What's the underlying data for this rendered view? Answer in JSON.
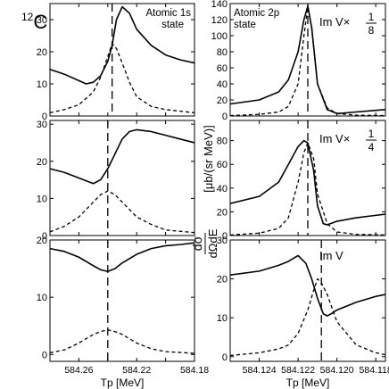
{
  "figure": {
    "y_label_numerator": "dσ",
    "y_label_denominator": "dΩdE",
    "y_label_unit": "[μb/(sr MeV)]",
    "nucleus_label_mass": "12",
    "nucleus_label_symbol": "C"
  },
  "chart_data": [
    {
      "type": "line",
      "panel": "left-top",
      "annotation": [
        "Atomic 1s",
        "state"
      ],
      "xlabel": "",
      "ylim": [
        0,
        35
      ],
      "yticks": [
        0,
        10,
        20,
        30
      ],
      "xlim": [
        584.28,
        584.18
      ],
      "x_tick_values": [
        584.26,
        584.24,
        584.22,
        584.2,
        584.18
      ],
      "x_tick_labels": [],
      "dashed_vline_x": 584.237,
      "series": [
        {
          "style": "solid",
          "x": [
            584.28,
            584.27,
            584.26,
            584.255,
            584.25,
            584.245,
            584.24,
            584.237,
            584.234,
            584.23,
            584.225,
            584.22,
            584.21,
            584.2,
            584.19,
            584.18
          ],
          "y": [
            14.5,
            13,
            11,
            10,
            10.5,
            12.5,
            17,
            22,
            30,
            34,
            32,
            27,
            22,
            19,
            17.5,
            16.5
          ]
        },
        {
          "style": "dashed",
          "x": [
            584.28,
            584.27,
            584.26,
            584.25,
            584.245,
            584.24,
            584.237,
            584.234,
            584.23,
            584.225,
            584.22,
            584.21,
            584.2,
            584.18
          ],
          "y": [
            1,
            2,
            3.5,
            7.5,
            12,
            18.5,
            22.5,
            21,
            16.5,
            10.5,
            6,
            3,
            2,
            1
          ]
        }
      ]
    },
    {
      "type": "line",
      "panel": "left-middle",
      "annotation": [],
      "xlabel": "",
      "ylim": [
        0,
        31
      ],
      "yticks": [
        0,
        10,
        20,
        30
      ],
      "xlim": [
        584.28,
        584.18
      ],
      "x_tick_values": [
        584.26,
        584.24,
        584.22,
        584.2,
        584.18
      ],
      "x_tick_labels": [],
      "dashed_vline_x": 584.24,
      "series": [
        {
          "style": "solid",
          "x": [
            584.28,
            584.27,
            584.26,
            584.25,
            584.245,
            584.24,
            584.235,
            584.23,
            584.225,
            584.22,
            584.21,
            584.2,
            584.19,
            584.18
          ],
          "y": [
            18,
            17,
            15.5,
            14,
            15,
            18,
            22,
            26,
            28,
            28.5,
            28,
            27,
            26,
            25
          ]
        },
        {
          "style": "dashed",
          "x": [
            584.28,
            584.27,
            584.26,
            584.25,
            584.245,
            584.24,
            584.235,
            584.23,
            584.22,
            584.21,
            584.2,
            584.18
          ],
          "y": [
            1,
            2.5,
            5,
            9,
            11,
            12,
            11,
            9,
            5,
            3,
            1.5,
            0.8
          ]
        }
      ]
    },
    {
      "type": "line",
      "panel": "left-bottom",
      "annotation": [],
      "xlabel": "Tp [MeV]",
      "ylim": [
        -1.2,
        20
      ],
      "yticks": [
        0,
        10,
        20
      ],
      "xlim": [
        584.28,
        584.18
      ],
      "x_tick_values": [
        584.26,
        584.24,
        584.22,
        584.2,
        584.18
      ],
      "x_tick_labels": [
        "584.26",
        "",
        "584.22",
        "",
        "584.18"
      ],
      "dashed_vline_x": 584.24,
      "series": [
        {
          "style": "solid",
          "x": [
            584.28,
            584.27,
            584.26,
            584.25,
            584.245,
            584.24,
            584.235,
            584.23,
            584.22,
            584.21,
            584.2,
            584.19,
            584.18
          ],
          "y": [
            18.5,
            18,
            17,
            15.5,
            14.8,
            14.5,
            15,
            16,
            17.5,
            18.5,
            19,
            19.2,
            19.5
          ]
        },
        {
          "style": "dashed",
          "x": [
            584.28,
            584.27,
            584.26,
            584.25,
            584.245,
            584.24,
            584.235,
            584.23,
            584.22,
            584.21,
            584.2,
            584.18
          ],
          "y": [
            0.3,
            0.8,
            2,
            3.5,
            4,
            4.3,
            4,
            3.5,
            2,
            1,
            0.5,
            0.2
          ]
        }
      ]
    },
    {
      "type": "line",
      "panel": "right-top",
      "annotation": [
        "Atomic 2p",
        "state"
      ],
      "scale_label": {
        "prefix": "Im V×",
        "num": "1",
        "den": "8"
      },
      "xlabel": "",
      "ylim": [
        0,
        140
      ],
      "yticks": [
        0,
        20,
        40,
        60,
        80,
        100,
        120,
        140
      ],
      "xlim": [
        584.1255,
        584.1175
      ],
      "x_tick_values": [
        584.124,
        584.122,
        584.12,
        584.118
      ],
      "x_tick_labels": [],
      "dashed_vline_x": 584.1215,
      "series": [
        {
          "style": "solid",
          "x": [
            584.1255,
            584.124,
            584.123,
            584.1225,
            584.122,
            584.1217,
            584.1215,
            584.1213,
            584.121,
            584.1205,
            584.12,
            584.119,
            584.118,
            584.1175
          ],
          "y": [
            15,
            20,
            30,
            45,
            80,
            120,
            137,
            110,
            40,
            8,
            3,
            5,
            7,
            8
          ]
        },
        {
          "style": "dashed",
          "x": [
            584.1255,
            584.124,
            584.123,
            584.1225,
            584.122,
            584.1217,
            584.1215,
            584.1213,
            584.121,
            584.1205,
            584.12,
            584.119,
            584.1175
          ],
          "y": [
            0.5,
            2,
            5,
            12,
            40,
            100,
            135,
            110,
            40,
            10,
            3,
            1,
            0.5
          ]
        }
      ]
    },
    {
      "type": "line",
      "panel": "right-middle",
      "annotation": [],
      "scale_label": {
        "prefix": "Im V×",
        "num": "1",
        "den": "4"
      },
      "xlabel": "",
      "ylim": [
        0,
        97
      ],
      "yticks": [
        0,
        20,
        40,
        60,
        80
      ],
      "xlim": [
        584.1255,
        584.1175
      ],
      "x_tick_values": [
        584.124,
        584.122,
        584.12,
        584.118
      ],
      "x_tick_labels": [],
      "dashed_vline_x": 584.1215,
      "series": [
        {
          "style": "solid",
          "x": [
            584.1255,
            584.124,
            584.123,
            584.1225,
            584.122,
            584.1217,
            584.1215,
            584.1212,
            584.121,
            584.1207,
            584.1205,
            584.12,
            584.119,
            584.118,
            584.1175
          ],
          "y": [
            27,
            33,
            45,
            60,
            75,
            80,
            78,
            55,
            25,
            10,
            9,
            12,
            15,
            17,
            18
          ]
        },
        {
          "style": "dashed",
          "x": [
            584.1255,
            584.124,
            584.123,
            584.1225,
            584.122,
            584.1217,
            584.1215,
            584.1212,
            584.121,
            584.1205,
            584.12,
            584.119,
            584.1175
          ],
          "y": [
            0.5,
            2,
            6,
            15,
            45,
            70,
            78,
            65,
            35,
            10,
            3,
            1,
            0.5
          ]
        }
      ]
    },
    {
      "type": "line",
      "panel": "right-bottom",
      "annotation": [],
      "scale_label": {
        "prefix": "Im V"
      },
      "xlabel": "Tp [MeV]",
      "ylim": [
        -1.2,
        30
      ],
      "yticks": [
        0,
        10,
        20,
        30
      ],
      "xlim": [
        584.1255,
        584.1175
      ],
      "x_tick_values": [
        584.124,
        584.122,
        584.12,
        584.118
      ],
      "x_tick_labels": [
        "584.124",
        "584.122",
        "584.120",
        "584.118"
      ],
      "dashed_vline_x": 584.1208,
      "series": [
        {
          "style": "solid",
          "x": [
            584.1255,
            584.124,
            584.123,
            584.1225,
            584.122,
            584.1216,
            584.1213,
            584.121,
            584.1207,
            584.1205,
            584.1203,
            584.12,
            584.119,
            584.118,
            584.1175
          ],
          "y": [
            21,
            22,
            23.5,
            24.5,
            26,
            24,
            20,
            15,
            11,
            10.5,
            11,
            12,
            14,
            15.5,
            16
          ]
        },
        {
          "style": "dashed",
          "x": [
            584.1255,
            584.124,
            584.123,
            584.1225,
            584.122,
            584.1215,
            584.1212,
            584.121,
            584.1208,
            584.1205,
            584.12,
            584.119,
            584.118,
            584.1175
          ],
          "y": [
            0.3,
            1,
            2,
            3,
            6,
            12,
            17,
            20,
            19,
            16,
            9,
            3,
            1,
            0.5
          ]
        }
      ]
    }
  ]
}
